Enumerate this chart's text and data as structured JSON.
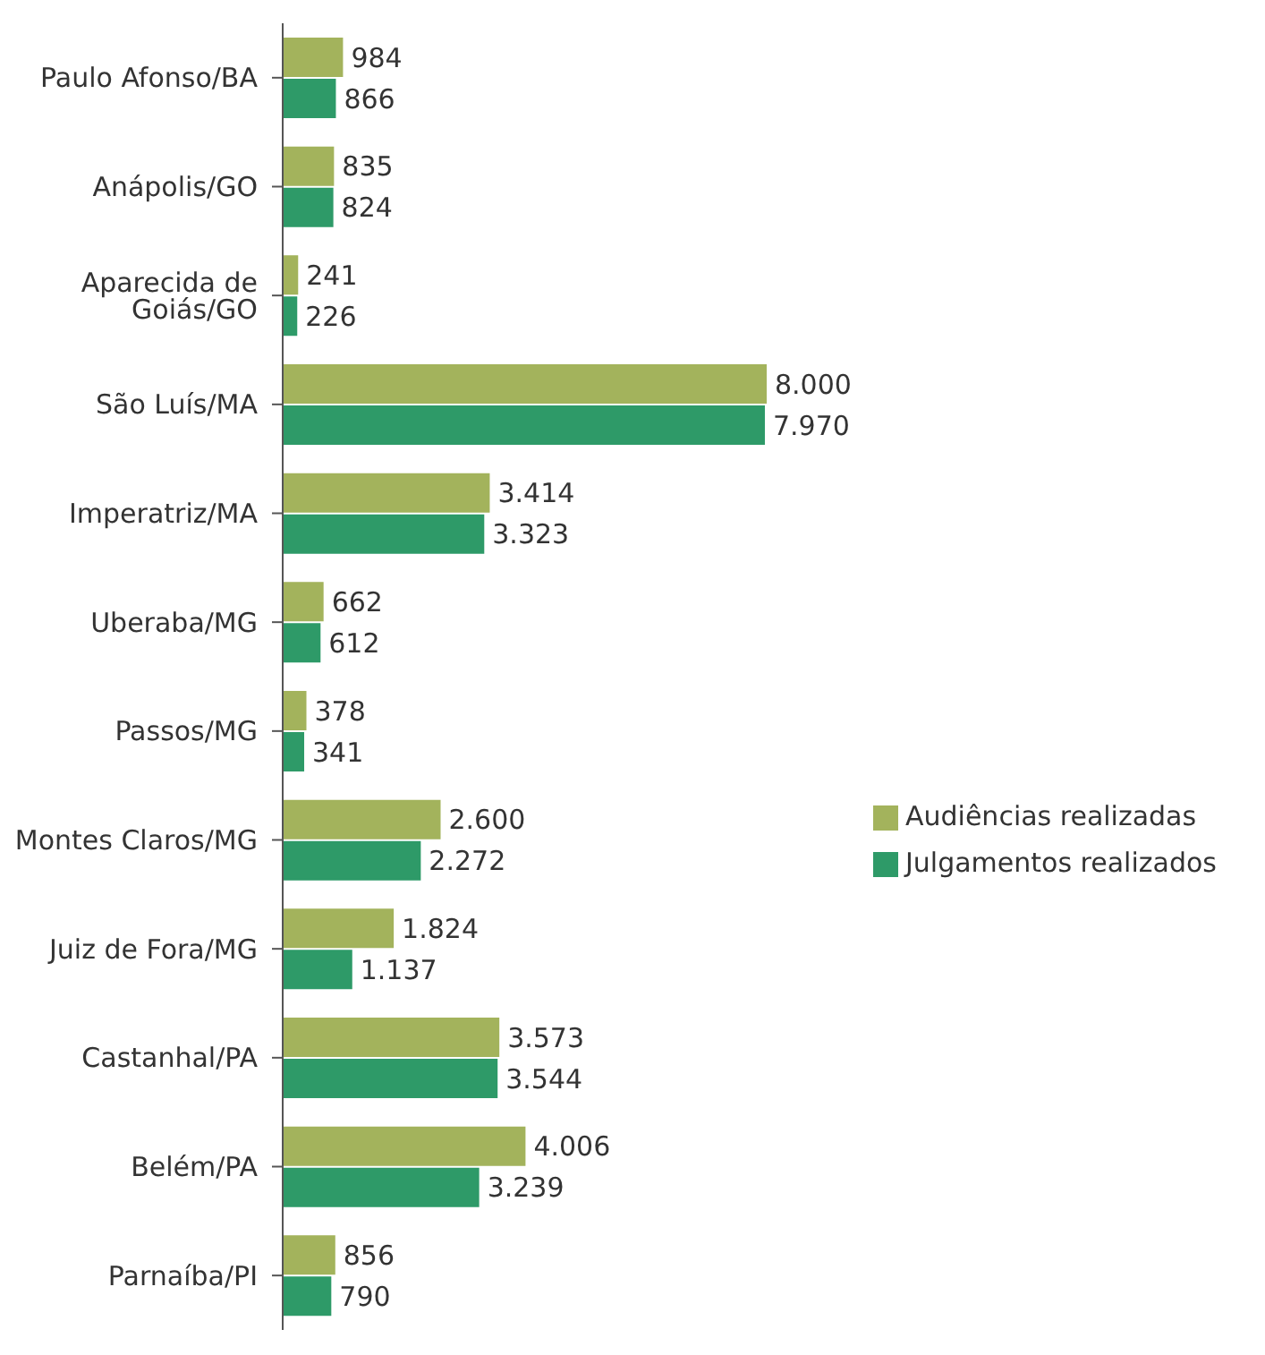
{
  "chart_data": {
    "type": "bar",
    "orientation": "horizontal",
    "categories": [
      "Paulo Afonso/BA",
      "Anápolis/GO",
      "Aparecida de Goiás/GO",
      "São Luís/MA",
      "Imperatriz/MA",
      "Uberaba/MG",
      "Passos/MG",
      "Montes Claros/MG",
      "Juiz de Fora/MG",
      "Castanhal/PA",
      "Belém/PA",
      "Parnaíba/PI"
    ],
    "series": [
      {
        "name": "Audiências realizadas",
        "color": "#a3b35c",
        "values": [
          984,
          835,
          241,
          8000,
          3414,
          662,
          378,
          2600,
          1824,
          3573,
          4006,
          856
        ],
        "value_labels": [
          "984",
          "835",
          "241",
          "8.000",
          "3.414",
          "662",
          "378",
          "2.600",
          "1.824",
          "3.573",
          "4.006",
          "856"
        ]
      },
      {
        "name": "Julgamentos realizados",
        "color": "#2e9a68",
        "values": [
          866,
          824,
          226,
          7970,
          3323,
          612,
          341,
          2272,
          1137,
          3544,
          3239,
          790
        ],
        "value_labels": [
          "866",
          "824",
          "226",
          "7.970",
          "3.323",
          "612",
          "341",
          "2.272",
          "1.137",
          "3.544",
          "3.239",
          "790"
        ]
      }
    ],
    "legend": "right",
    "grid": false
  }
}
